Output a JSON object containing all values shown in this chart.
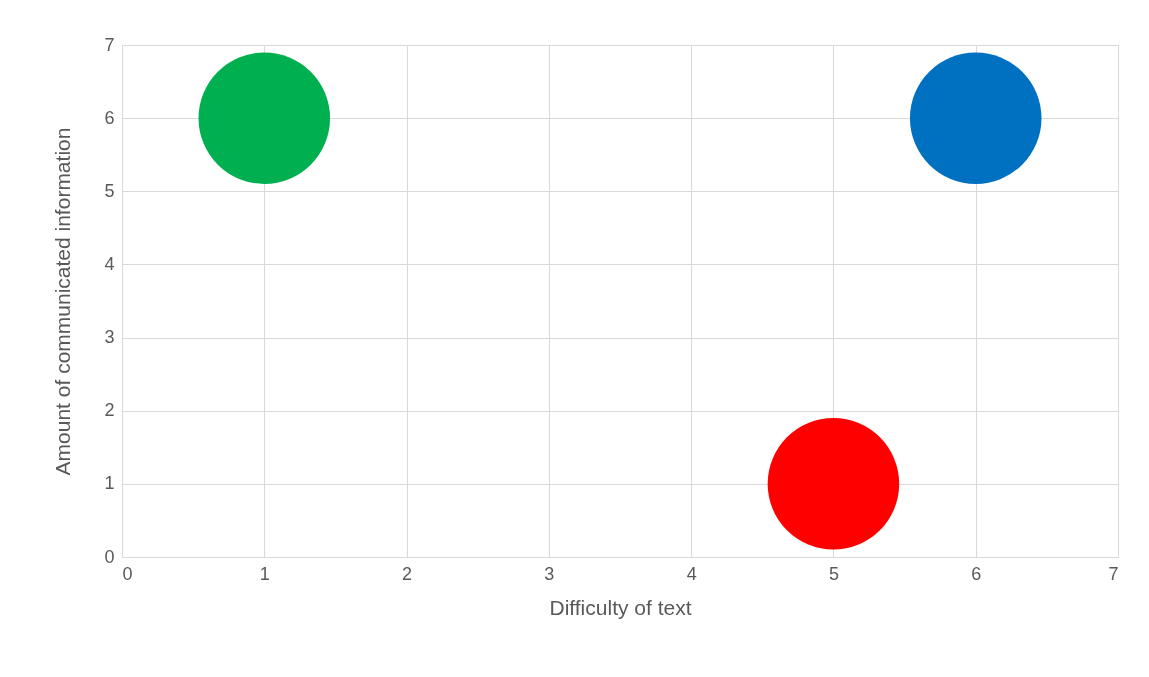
{
  "chart_data": {
    "type": "bubble",
    "xlabel": "Difficulty of text",
    "ylabel": "Amount of communicated  information",
    "x": [
      1,
      6,
      5
    ],
    "values": [
      6,
      6,
      1
    ],
    "sizes": [
      1,
      1,
      1
    ],
    "colors": [
      "#00b050",
      "#0070c0",
      "#ff0000"
    ],
    "xlim": [
      0,
      7
    ],
    "xticks": [
      0,
      1,
      2,
      3,
      4,
      5,
      6,
      7
    ],
    "ylim": [
      0,
      7
    ],
    "yticks": [
      0,
      1,
      2,
      3,
      4,
      5,
      6,
      7
    ],
    "grid": true,
    "legend": false
  }
}
